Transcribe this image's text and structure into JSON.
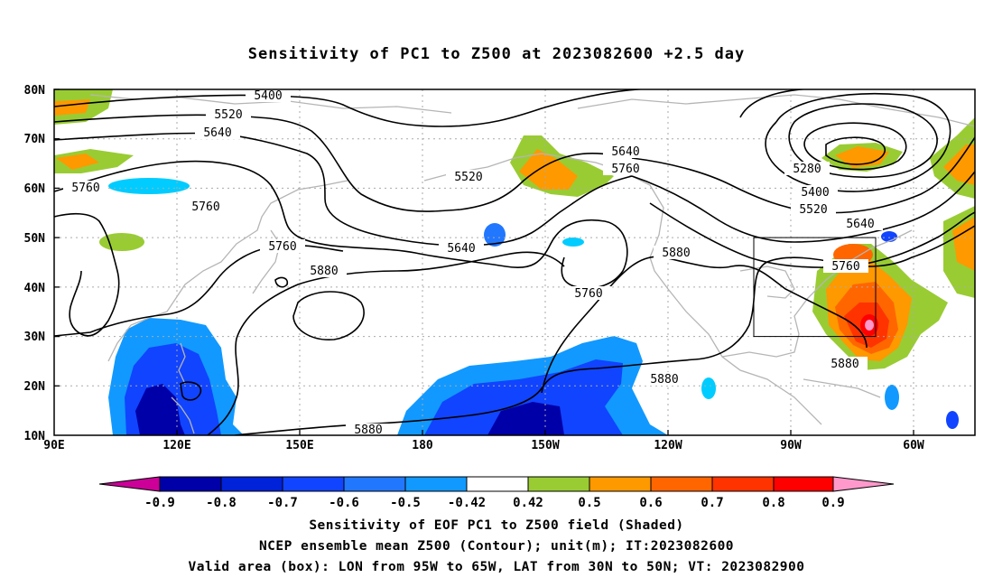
{
  "title": "Sensitivity of PC1 to Z500 at 2023082600 +2.5 day",
  "map": {
    "lat_ticks": [
      "80N",
      "70N",
      "60N",
      "50N",
      "40N",
      "30N",
      "20N",
      "10N"
    ],
    "lon_ticks": [
      "90E",
      "120E",
      "150E",
      "180",
      "150W",
      "120W",
      "90W",
      "60W"
    ],
    "lon_range_deg_east": [
      90,
      315
    ],
    "lat_range_deg": [
      10,
      80
    ],
    "contour_labels": [
      "5400",
      "5520",
      "5640",
      "5760",
      "5760",
      "5760",
      "5520",
      "5640",
      "5760",
      "5640",
      "5880",
      "5760",
      "5880",
      "5880",
      "5880",
      "5280",
      "5400",
      "5520",
      "5640",
      "5760",
      "5880"
    ],
    "valid_box": {
      "lon_west": "95W",
      "lon_east": "65W",
      "lat_south": "30N",
      "lat_north": "50N"
    }
  },
  "colorbar": {
    "labels": [
      "-0.9",
      "-0.8",
      "-0.7",
      "-0.6",
      "-0.5",
      "-0.42",
      "0.42",
      "0.5",
      "0.6",
      "0.7",
      "0.8",
      "0.9"
    ],
    "colors": [
      "#cc0099",
      "#0000a8",
      "#0022d8",
      "#1144ff",
      "#2277ff",
      "#1199ff",
      "#00ccff",
      "#ffffff",
      "#99cc33",
      "#ff9900",
      "#ff6600",
      "#ff3300",
      "#ff0000",
      "#ff99cc"
    ]
  },
  "captions": [
    "Sensitivity of EOF PC1 to Z500 field (Shaded)",
    "NCEP ensemble mean Z500 (Contour); unit(m); IT:2023082600",
    "Valid area (box): LON from 95W to 65W, LAT from 30N to 50N; VT: 2023082900"
  ]
}
